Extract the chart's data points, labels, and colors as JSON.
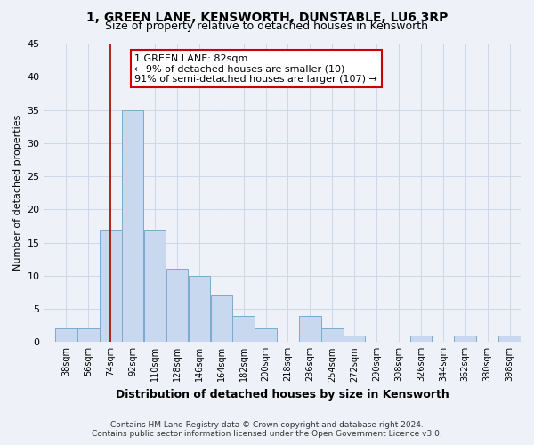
{
  "title": "1, GREEN LANE, KENSWORTH, DUNSTABLE, LU6 3RP",
  "subtitle": "Size of property relative to detached houses in Kensworth",
  "xlabel": "Distribution of detached houses by size in Kensworth",
  "ylabel": "Number of detached properties",
  "bar_color": "#c8d8ee",
  "bar_edge_color": "#7aaace",
  "background_color": "#eef2f8",
  "grid_color": "#d0d8e8",
  "bin_labels": [
    "38sqm",
    "56sqm",
    "74sqm",
    "92sqm",
    "110sqm",
    "128sqm",
    "146sqm",
    "164sqm",
    "182sqm",
    "200sqm",
    "218sqm",
    "236sqm",
    "254sqm",
    "272sqm",
    "290sqm",
    "308sqm",
    "326sqm",
    "344sqm",
    "362sqm",
    "380sqm",
    "398sqm"
  ],
  "bar_heights": [
    2,
    2,
    17,
    35,
    17,
    11,
    10,
    7,
    4,
    2,
    0,
    4,
    2,
    1,
    0,
    0,
    1,
    0,
    1,
    0,
    1
  ],
  "bin_width": 18,
  "bin_start": 38,
  "marker_x": 83,
  "marker_color": "#aa0000",
  "ylim": [
    0,
    45
  ],
  "yticks": [
    0,
    5,
    10,
    15,
    20,
    25,
    30,
    35,
    40,
    45
  ],
  "xlim_left": 29,
  "xlim_right": 416,
  "annotation_title": "1 GREEN LANE: 82sqm",
  "annotation_line1": "← 9% of detached houses are smaller (10)",
  "annotation_line2": "91% of semi-detached houses are larger (107) →",
  "annotation_box_color": "#ffffff",
  "annotation_box_edge": "#cc0000",
  "footer1": "Contains HM Land Registry data © Crown copyright and database right 2024.",
  "footer2": "Contains public sector information licensed under the Open Government Licence v3.0."
}
